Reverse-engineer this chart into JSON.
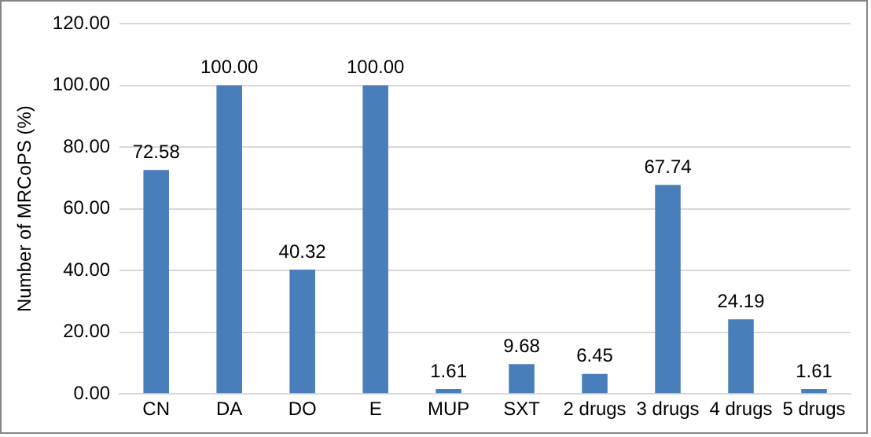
{
  "chart_data": {
    "type": "bar",
    "ylabel": "Number of MRCoPS (%)",
    "categories": [
      "CN",
      "DA",
      "DO",
      "E",
      "MUP",
      "SXT",
      "2 drugs",
      "3 drugs",
      "4 drugs",
      "5 drugs"
    ],
    "values": [
      72.58,
      100,
      40.32,
      100,
      1.61,
      9.68,
      6.45,
      67.74,
      24.19,
      1.61
    ],
    "value_labels": [
      "72.58",
      "100.00",
      "40.32",
      "100.00",
      "1.61",
      "9.68",
      "6.45",
      "67.74",
      "24.19",
      "1.61"
    ],
    "color": "#4a7ebb",
    "ylim": [
      0,
      120
    ],
    "yticks": [
      {
        "value": 0,
        "label": "0.00"
      },
      {
        "value": 20,
        "label": "20.00"
      },
      {
        "value": 40,
        "label": "40.00"
      },
      {
        "value": 60,
        "label": "60.00"
      },
      {
        "value": 80,
        "label": "80.00"
      },
      {
        "value": 100,
        "label": "100.00"
      },
      {
        "value": 120,
        "label": "120.00"
      }
    ],
    "grid": "y",
    "legend": false
  }
}
